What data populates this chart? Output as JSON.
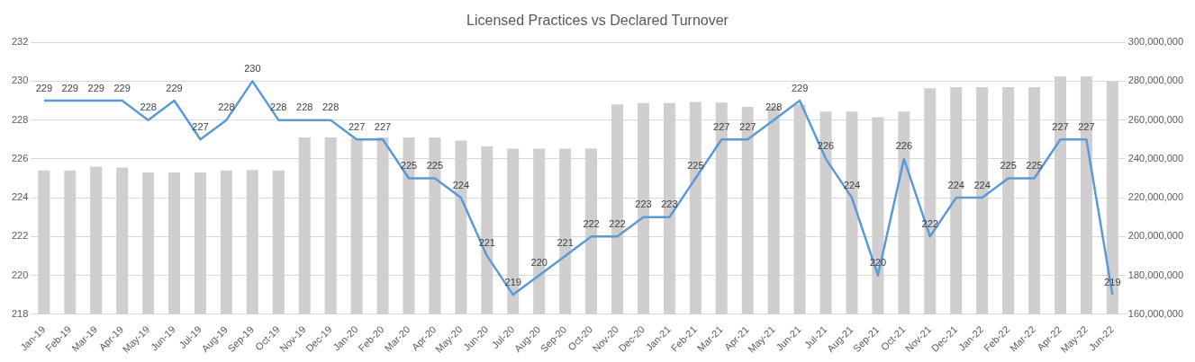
{
  "chart_data": {
    "type": "line",
    "title": "Licensed Practices vs Declared Turnover",
    "categories": [
      "Jan-19",
      "Feb-19",
      "Mar-19",
      "Apr-19",
      "May-19",
      "Jun-19",
      "Jul-19",
      "Aug-19",
      "Sep-19",
      "Oct-19",
      "Nov-19",
      "Dec-19",
      "Jan-20",
      "Feb-20",
      "Mar-20",
      "Apr-20",
      "May-20",
      "Jun-20",
      "Jul-20",
      "Aug-20",
      "Sep-20",
      "Oct-20",
      "Nov-20",
      "Dec-20",
      "Jan-21",
      "Feb-21",
      "Mar-21",
      "Apr-21",
      "May-21",
      "Jun-21",
      "Jul-21",
      "Aug-21",
      "Sep-21",
      "Oct-21",
      "Nov-21",
      "Dec-21",
      "Jan-22",
      "Feb-22",
      "Mar-22",
      "Apr-22",
      "May-22",
      "Jun-22"
    ],
    "series": [
      {
        "type": "bar",
        "axis": "y2",
        "color": "#d0cece",
        "values": [
          234000000,
          234000000,
          236000000,
          235500000,
          233000000,
          233000000,
          233000000,
          234000000,
          234300000,
          234000000,
          251000000,
          251000000,
          250700000,
          251000000,
          251000000,
          251000000,
          249400000,
          246400000,
          245200000,
          245200000,
          245200000,
          245200000,
          268000000,
          268700000,
          268700000,
          269300000,
          269000000,
          266800000,
          267000000,
          268000000,
          264400000,
          264400000,
          261400000,
          264400000,
          276400000,
          277000000,
          277000000,
          277000000,
          277000000,
          282500000,
          282500000,
          280000000
        ]
      },
      {
        "color": "#5b9bd5",
        "values": [
          229,
          229,
          229,
          229,
          228,
          229,
          227,
          228,
          230,
          228,
          228,
          228,
          227,
          227,
          225,
          225,
          224,
          221,
          219,
          220,
          221,
          222,
          222,
          223,
          223,
          225,
          227,
          227,
          228,
          229,
          226,
          224,
          220,
          226,
          222,
          224,
          224,
          225,
          225,
          227,
          227,
          219
        ],
        "value_labels": [
          "229",
          "229",
          "229",
          "229",
          "228",
          "229",
          "227",
          "228",
          "230",
          "228",
          "228",
          "228",
          "227",
          "227",
          "225",
          "225",
          "224",
          "221",
          "219",
          "220",
          "221",
          "222",
          "222",
          "223",
          "223",
          "225",
          "227",
          "227",
          "228",
          "229",
          "226",
          "224",
          "220",
          "226",
          "222",
          "224",
          "224",
          "225",
          "225",
          "227",
          "227",
          "219"
        ]
      }
    ],
    "ylim": [
      218,
      232
    ],
    "yticks": [
      218,
      220,
      222,
      224,
      226,
      228,
      230,
      232
    ],
    "y2lim": [
      160000000,
      300000000
    ],
    "y2ticks": [
      {
        "value": 160000000,
        "label": "160,000,000"
      },
      {
        "value": 180000000,
        "label": "180,000,000"
      },
      {
        "value": 200000000,
        "label": "200,000,000"
      },
      {
        "value": 220000000,
        "label": "220,000,000"
      },
      {
        "value": 240000000,
        "label": "240,000,000"
      },
      {
        "value": 260000000,
        "label": "260,000,000"
      },
      {
        "value": 280000000,
        "label": "280,000,000"
      },
      {
        "value": 300000000,
        "label": "300,000,000"
      }
    ],
    "grid": "y",
    "marker": "none",
    "line_style": "solid",
    "legend": false
  }
}
